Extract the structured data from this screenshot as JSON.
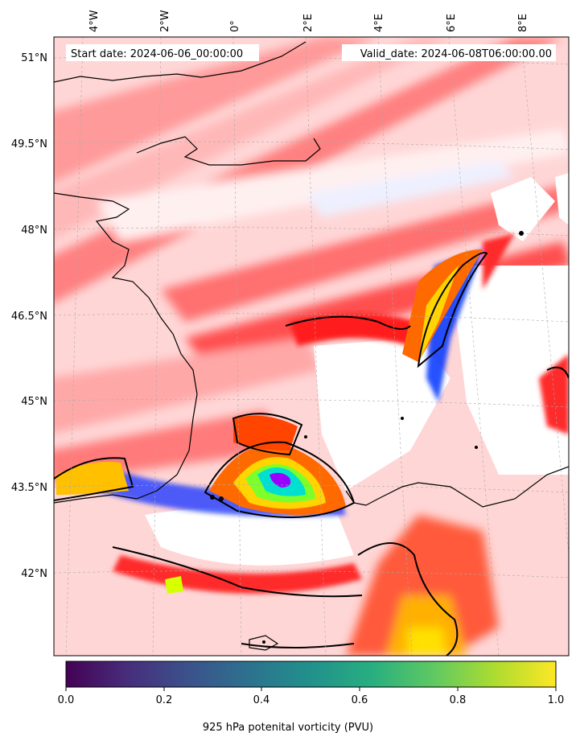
{
  "header": {
    "start_text": "Start date: 2024-06-06_00:00:00",
    "valid_text": "Valid_date: 2024-06-08T06:00:00.00"
  },
  "longitude_labels": [
    "4°W",
    "2°W",
    "0°",
    "2°E",
    "4°E",
    "6°E",
    "8°E"
  ],
  "latitude_labels": [
    "51°N",
    "49.5°N",
    "48°N",
    "46.5°N",
    "45°N",
    "43.5°N",
    "42°N"
  ],
  "colorbar": {
    "label": "925 hPa potenital vorticity (PVU)",
    "ticks": [
      "0.0",
      "0.2",
      "0.4",
      "0.6",
      "0.8",
      "1.0"
    ],
    "range": [
      0.0,
      1.0
    ],
    "colormap": "viridis"
  },
  "colors": {
    "pv_shading": [
      "#ffffff",
      "#e8eaff",
      "#ffd4d4",
      "#ffaaaa",
      "#ff6b6b",
      "#ff2a2a",
      "#ff6a00",
      "#ffd400",
      "#b0ff2a",
      "#2aff6a",
      "#00e0d0",
      "#0033ff",
      "#9a00ff"
    ],
    "contour": "#000000",
    "coastline": "#000000"
  }
}
